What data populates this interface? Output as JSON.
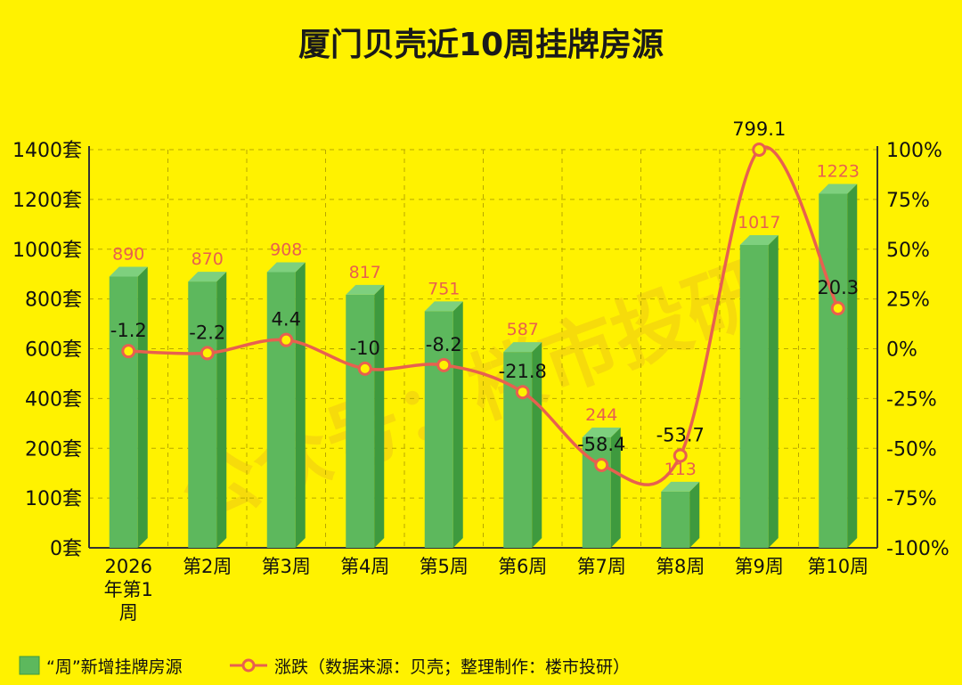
{
  "title": "厦门贝壳近10周挂牌房源",
  "watermark": "公众号：楼市投研",
  "legend": {
    "bar": "“周”新增挂牌房源",
    "line": "涨跌（数据来源：贝壳；整理制作：楼市投研）"
  },
  "colors": {
    "background": "#FFF200",
    "bar_front": "#5DB85D",
    "bar_side": "#3E9A3E",
    "bar_top": "#7ED07E",
    "line": "#E8604F",
    "bar_label": "#E8604F"
  },
  "chart_data": {
    "type": "bar",
    "categories": [
      "2026年第1周",
      "第2周",
      "第3周",
      "第4周",
      "第5周",
      "第6周",
      "第7周",
      "第8周",
      "第9周",
      "第10周"
    ],
    "series": [
      {
        "name": "“周”新增挂牌房源",
        "type": "bar",
        "axis": "left",
        "values": [
          890,
          870,
          908,
          817,
          751,
          587,
          244,
          113,
          1017,
          1223
        ]
      },
      {
        "name": "涨跌",
        "type": "line",
        "axis": "right",
        "unit": "%",
        "values": [
          -1.2,
          -2.2,
          4.4,
          -10,
          -8.2,
          -21.8,
          -58.4,
          -53.7,
          799.1,
          20.3
        ]
      }
    ],
    "left_axis": {
      "ticks": [
        0,
        100,
        200,
        400,
        600,
        800,
        1000,
        1200,
        1400
      ],
      "tick_labels": [
        "0套",
        "100套",
        "200套",
        "400套",
        "600套",
        "800套",
        "1000套",
        "1200套",
        "1400套"
      ]
    },
    "right_axis": {
      "ticks": [
        -100,
        -75,
        -50,
        -25,
        0,
        25,
        50,
        75,
        100
      ],
      "tick_labels": [
        "-100%",
        "-75%",
        "-50%",
        "-25%",
        "0%",
        "25%",
        "50%",
        "75%",
        "100%"
      ]
    },
    "line_labels": [
      "-1.2",
      "-2.2",
      "4.4",
      "-10",
      "-8.2",
      "-21.8",
      "-58.4",
      "-53.7",
      "799.1",
      "20.3"
    ],
    "grid": true,
    "legend_position": "bottom-left"
  }
}
